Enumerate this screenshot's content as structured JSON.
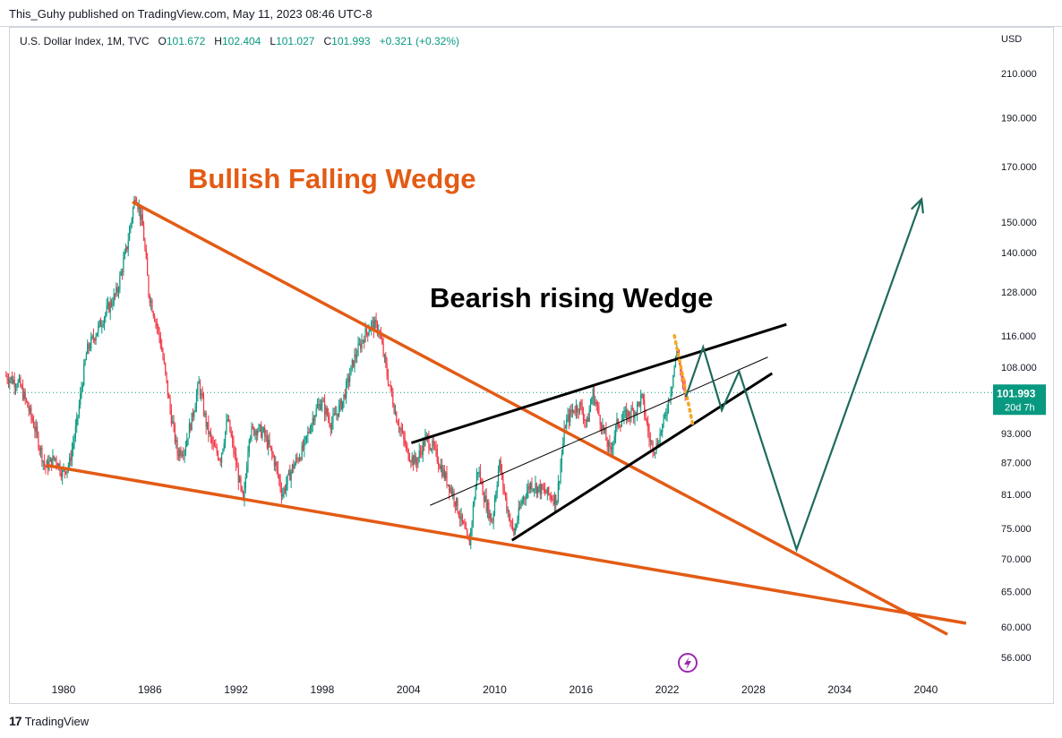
{
  "header": {
    "published": "This_Guhy published on TradingView.com, May 11, 2023 08:46 UTC-8"
  },
  "legend": {
    "symbol": "U.S. Dollar Index, 1M, TVC",
    "o_label": "O",
    "o_value": "101.672",
    "h_label": "H",
    "h_value": "102.404",
    "l_label": "L",
    "l_value": "101.027",
    "c_label": "C",
    "c_value": "101.993",
    "change": "+0.321 (+0.32%)"
  },
  "currency": "USD",
  "price_badge": {
    "price": "101.993",
    "countdown": "20d 7h",
    "color": "#089981"
  },
  "footer": {
    "brand": "TradingView"
  },
  "colors": {
    "up": "#089981",
    "down": "#f23645",
    "wedge": "#e35b15",
    "projection": "#1e6b5c",
    "accent_icon": "#9c27b0"
  },
  "chart_data": {
    "type": "line",
    "y_scale": "log",
    "ylim": [
      54,
      225
    ],
    "xlim": [
      1976.0,
      2044.0
    ],
    "y_ticks": [
      "210.000",
      "190.000",
      "170.000",
      "150.000",
      "140.000",
      "128.000",
      "116.000",
      "108.000",
      "93.000",
      "87.000",
      "81.000",
      "75.000",
      "70.000",
      "65.000",
      "60.000",
      "56.000"
    ],
    "x_ticks": [
      "1980",
      "1986",
      "1992",
      "1998",
      "2004",
      "2010",
      "2016",
      "2022",
      "2028",
      "2034",
      "2040"
    ],
    "last_price": 101.993,
    "annotations": [
      {
        "text": "Bullish Falling Wedge",
        "color": "#e35b15"
      },
      {
        "text": "Bearish rising Wedge",
        "color": "#000000"
      }
    ],
    "series": [
      {
        "values": [
          {
            "x": 1976.0,
            "y": 106
          },
          {
            "x": 1977.0,
            "y": 104
          },
          {
            "x": 1978.0,
            "y": 95
          },
          {
            "x": 1978.8,
            "y": 86
          },
          {
            "x": 1979.5,
            "y": 88
          },
          {
            "x": 1980.0,
            "y": 85
          },
          {
            "x": 1980.5,
            "y": 87
          },
          {
            "x": 1981.0,
            "y": 95
          },
          {
            "x": 1981.7,
            "y": 112
          },
          {
            "x": 1982.5,
            "y": 118
          },
          {
            "x": 1983.0,
            "y": 122
          },
          {
            "x": 1983.8,
            "y": 128
          },
          {
            "x": 1984.5,
            "y": 142
          },
          {
            "x": 1985.1,
            "y": 160
          },
          {
            "x": 1985.6,
            "y": 148
          },
          {
            "x": 1986.0,
            "y": 128
          },
          {
            "x": 1986.8,
            "y": 115
          },
          {
            "x": 1987.5,
            "y": 98
          },
          {
            "x": 1988.0,
            "y": 89
          },
          {
            "x": 1988.5,
            "y": 90
          },
          {
            "x": 1989.0,
            "y": 96
          },
          {
            "x": 1989.5,
            "y": 104
          },
          {
            "x": 1990.0,
            "y": 95
          },
          {
            "x": 1990.5,
            "y": 90
          },
          {
            "x": 1991.0,
            "y": 88
          },
          {
            "x": 1991.5,
            "y": 96
          },
          {
            "x": 1992.0,
            "y": 88
          },
          {
            "x": 1992.6,
            "y": 79
          },
          {
            "x": 1993.0,
            "y": 93
          },
          {
            "x": 1993.5,
            "y": 94
          },
          {
            "x": 1994.0,
            "y": 93
          },
          {
            "x": 1994.8,
            "y": 87
          },
          {
            "x": 1995.3,
            "y": 81
          },
          {
            "x": 1996.0,
            "y": 86
          },
          {
            "x": 1996.8,
            "y": 90
          },
          {
            "x": 1997.5,
            "y": 97
          },
          {
            "x": 1998.0,
            "y": 100
          },
          {
            "x": 1998.7,
            "y": 95
          },
          {
            "x": 1999.5,
            "y": 100
          },
          {
            "x": 2000.3,
            "y": 110
          },
          {
            "x": 2001.0,
            "y": 116
          },
          {
            "x": 2001.5,
            "y": 119
          },
          {
            "x": 2002.0,
            "y": 118
          },
          {
            "x": 2002.6,
            "y": 106
          },
          {
            "x": 2003.2,
            "y": 97
          },
          {
            "x": 2004.0,
            "y": 89
          },
          {
            "x": 2004.6,
            "y": 87
          },
          {
            "x": 2005.3,
            "y": 92
          },
          {
            "x": 2005.8,
            "y": 90
          },
          {
            "x": 2006.5,
            "y": 85
          },
          {
            "x": 2007.2,
            "y": 81
          },
          {
            "x": 2007.8,
            "y": 76
          },
          {
            "x": 2008.3,
            "y": 72
          },
          {
            "x": 2008.9,
            "y": 86
          },
          {
            "x": 2009.4,
            "y": 80
          },
          {
            "x": 2009.9,
            "y": 76
          },
          {
            "x": 2010.4,
            "y": 87
          },
          {
            "x": 2010.9,
            "y": 79
          },
          {
            "x": 2011.4,
            "y": 74
          },
          {
            "x": 2012.0,
            "y": 80
          },
          {
            "x": 2012.6,
            "y": 83
          },
          {
            "x": 2013.2,
            "y": 82
          },
          {
            "x": 2013.8,
            "y": 81
          },
          {
            "x": 2014.4,
            "y": 80
          },
          {
            "x": 2015.0,
            "y": 95
          },
          {
            "x": 2015.5,
            "y": 98
          },
          {
            "x": 2016.0,
            "y": 99
          },
          {
            "x": 2016.5,
            "y": 95
          },
          {
            "x": 2016.9,
            "y": 102
          },
          {
            "x": 2017.5,
            "y": 95
          },
          {
            "x": 2018.1,
            "y": 89
          },
          {
            "x": 2018.6,
            "y": 95
          },
          {
            "x": 2019.3,
            "y": 97
          },
          {
            "x": 2019.9,
            "y": 98
          },
          {
            "x": 2020.3,
            "y": 101
          },
          {
            "x": 2020.9,
            "y": 91
          },
          {
            "x": 2021.3,
            "y": 90
          },
          {
            "x": 2021.9,
            "y": 96
          },
          {
            "x": 2022.4,
            "y": 104
          },
          {
            "x": 2022.8,
            "y": 113
          },
          {
            "x": 2023.1,
            "y": 104
          },
          {
            "x": 2023.35,
            "y": 101.993
          }
        ]
      }
    ]
  }
}
